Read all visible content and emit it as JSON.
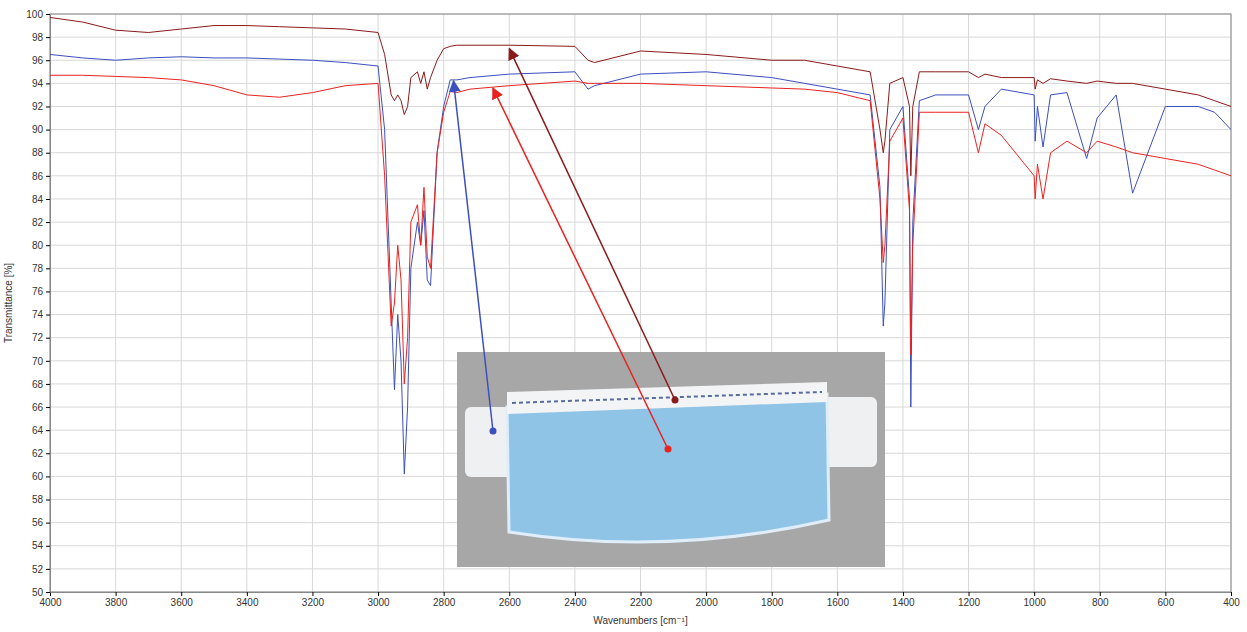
{
  "chart_data": {
    "type": "line",
    "x_label": "Wavenumbers [cm⁻¹]",
    "y_label": "Transmittance [%]",
    "xlim": [
      4000,
      400
    ],
    "ylim": [
      50,
      100
    ],
    "xticks": [
      4000,
      3800,
      3600,
      3400,
      3200,
      3000,
      2800,
      2600,
      2400,
      2200,
      2000,
      1800,
      1600,
      1400,
      1200,
      1000,
      800,
      600,
      400
    ],
    "yticks": [
      50,
      52,
      54,
      56,
      58,
      60,
      62,
      64,
      66,
      68,
      70,
      72,
      74,
      76,
      78,
      80,
      82,
      84,
      86,
      88,
      90,
      92,
      94,
      96,
      98,
      100
    ],
    "grid": true,
    "x": [
      4000,
      3900,
      3800,
      3700,
      3600,
      3500,
      3400,
      3300,
      3200,
      3100,
      3000,
      2980,
      2960,
      2950,
      2940,
      2930,
      2920,
      2910,
      2900,
      2880,
      2870,
      2860,
      2850,
      2840,
      2820,
      2800,
      2780,
      2760,
      2720,
      2600,
      2400,
      2360,
      2340,
      2200,
      2000,
      1800,
      1700,
      1600,
      1500,
      1470,
      1460,
      1455,
      1440,
      1400,
      1380,
      1376,
      1370,
      1350,
      1300,
      1200,
      1170,
      1150,
      1100,
      1000,
      997,
      990,
      973,
      950,
      900,
      840,
      808,
      750,
      700,
      600,
      500,
      450,
      400
    ],
    "series": [
      {
        "color": "#8b1a1a",
        "values": [
          99.7,
          99.3,
          98.6,
          98.4,
          98.7,
          99.0,
          99.0,
          98.9,
          98.8,
          98.7,
          98.4,
          96.5,
          93.0,
          92.5,
          93.0,
          92.5,
          91.3,
          92.0,
          94.5,
          95.0,
          94.0,
          95.0,
          93.5,
          94.5,
          96.0,
          97.0,
          97.2,
          97.3,
          97.3,
          97.3,
          97.2,
          96.0,
          95.8,
          96.8,
          96.5,
          96.0,
          96.0,
          95.5,
          95.0,
          90.0,
          88.0,
          89.0,
          94.0,
          94.5,
          92.0,
          86.0,
          92.0,
          95.0,
          95.0,
          95.0,
          94.5,
          94.8,
          94.5,
          94.5,
          93.5,
          94.3,
          94.0,
          94.4,
          94.2,
          94.0,
          94.2,
          94.0,
          94.0,
          93.5,
          93.0,
          92.5,
          92.0
        ]
      },
      {
        "color": "#3c4fbf",
        "values": [
          96.5,
          96.2,
          96.0,
          96.2,
          96.3,
          96.2,
          96.2,
          96.1,
          96.0,
          95.8,
          95.5,
          90.0,
          75.0,
          67.5,
          74.0,
          70.0,
          60.2,
          66.0,
          78.0,
          82.0,
          80.0,
          83.0,
          77.0,
          76.5,
          88.0,
          92.0,
          94.3,
          94.3,
          94.5,
          94.8,
          95.0,
          93.5,
          93.8,
          94.8,
          95.0,
          94.5,
          94.0,
          93.5,
          93.0,
          85.0,
          73.0,
          75.0,
          90.0,
          92.0,
          84.0,
          66.0,
          82.0,
          92.5,
          93.0,
          93.0,
          90.0,
          92.0,
          93.5,
          93.0,
          89.0,
          92.0,
          88.5,
          93.0,
          93.2,
          87.5,
          91.0,
          93.0,
          84.5,
          92.0,
          92.0,
          91.5,
          90.0
        ]
      },
      {
        "color": "#e8231f",
        "values": [
          94.7,
          94.7,
          94.6,
          94.5,
          94.3,
          93.8,
          93.0,
          92.8,
          93.2,
          93.8,
          94.0,
          86.0,
          73.0,
          75.0,
          80.0,
          77.0,
          68.0,
          72.0,
          82.0,
          83.5,
          80.0,
          85.0,
          79.0,
          78.0,
          88.0,
          91.5,
          93.3,
          93.2,
          93.5,
          93.8,
          94.2,
          94.0,
          94.0,
          94.0,
          93.8,
          93.6,
          93.5,
          93.2,
          92.5,
          84.0,
          78.5,
          80.0,
          89.0,
          91.0,
          83.0,
          70.5,
          80.0,
          91.5,
          91.5,
          91.5,
          88.0,
          90.5,
          89.5,
          86.0,
          84.0,
          87.0,
          84.0,
          88.0,
          89.0,
          88.0,
          89.0,
          88.5,
          88.0,
          87.5,
          87.0,
          86.5,
          86.0
        ]
      }
    ]
  }
}
